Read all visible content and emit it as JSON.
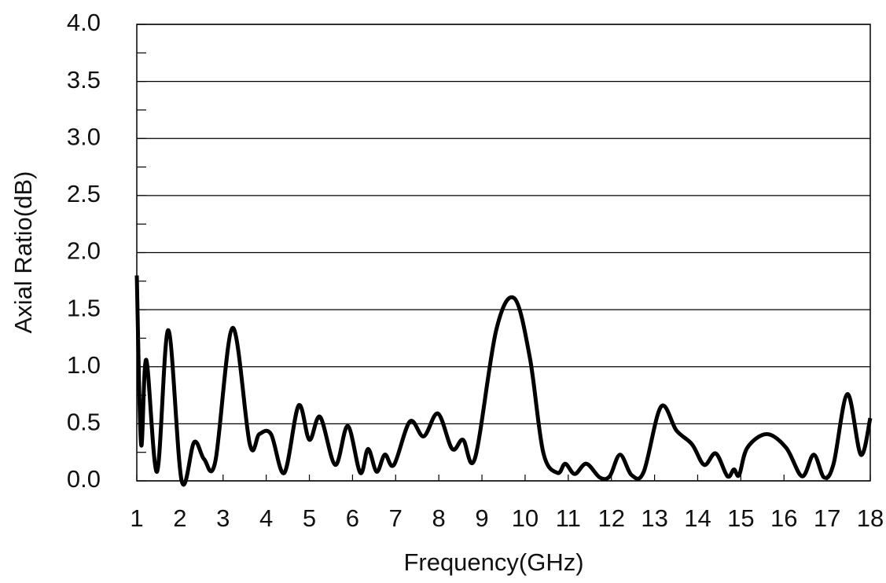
{
  "chart_data": {
    "type": "line",
    "x_label": "Frequency(GHz)",
    "y_label": "Axial Ratio(dB)",
    "xlim": [
      1,
      18
    ],
    "ylim": [
      0,
      4
    ],
    "xticks": [
      1,
      2,
      3,
      4,
      5,
      6,
      7,
      8,
      9,
      10,
      11,
      12,
      13,
      14,
      15,
      16,
      17,
      18
    ],
    "yticks": [
      {
        "value": 0,
        "label": "0.0"
      },
      0.5,
      {
        "value": 1,
        "label": "1.0"
      },
      1.5,
      {
        "value": 2,
        "label": "2.0"
      },
      2.5,
      {
        "value": 3,
        "label": "3.0"
      },
      3.5,
      {
        "value": 4,
        "label": "4.0"
      }
    ],
    "grid": true,
    "series": [
      {
        "color": "#000000",
        "x": [
          1.0,
          1.1,
          1.22,
          1.47,
          1.73,
          2.04,
          2.33,
          2.56,
          2.82,
          3.22,
          3.62,
          3.84,
          4.11,
          4.42,
          4.75,
          5.0,
          5.25,
          5.6,
          5.89,
          6.18,
          6.36,
          6.56,
          6.75,
          6.96,
          7.33,
          7.65,
          7.98,
          8.31,
          8.56,
          8.84,
          9.33,
          9.75,
          10.11,
          10.42,
          10.75,
          10.93,
          11.15,
          11.42,
          11.73,
          11.96,
          12.2,
          12.47,
          12.75,
          13.15,
          13.51,
          13.87,
          14.15,
          14.42,
          14.69,
          14.84,
          14.96,
          15.15,
          15.6,
          16.05,
          16.42,
          16.69,
          16.93,
          17.15,
          17.47,
          17.78,
          18.0
        ],
        "values": [
          1.8,
          0.32,
          1.06,
          0.08,
          1.32,
          0.0,
          0.34,
          0.19,
          0.17,
          1.34,
          0.32,
          0.41,
          0.41,
          0.07,
          0.66,
          0.36,
          0.56,
          0.14,
          0.48,
          0.07,
          0.28,
          0.08,
          0.23,
          0.14,
          0.52,
          0.39,
          0.59,
          0.28,
          0.36,
          0.2,
          1.32,
          1.6,
          1.08,
          0.25,
          0.07,
          0.15,
          0.06,
          0.15,
          0.03,
          0.04,
          0.23,
          0.05,
          0.08,
          0.65,
          0.44,
          0.32,
          0.14,
          0.24,
          0.04,
          0.1,
          0.05,
          0.29,
          0.41,
          0.29,
          0.04,
          0.23,
          0.03,
          0.15,
          0.76,
          0.23,
          0.55
        ]
      }
    ]
  }
}
